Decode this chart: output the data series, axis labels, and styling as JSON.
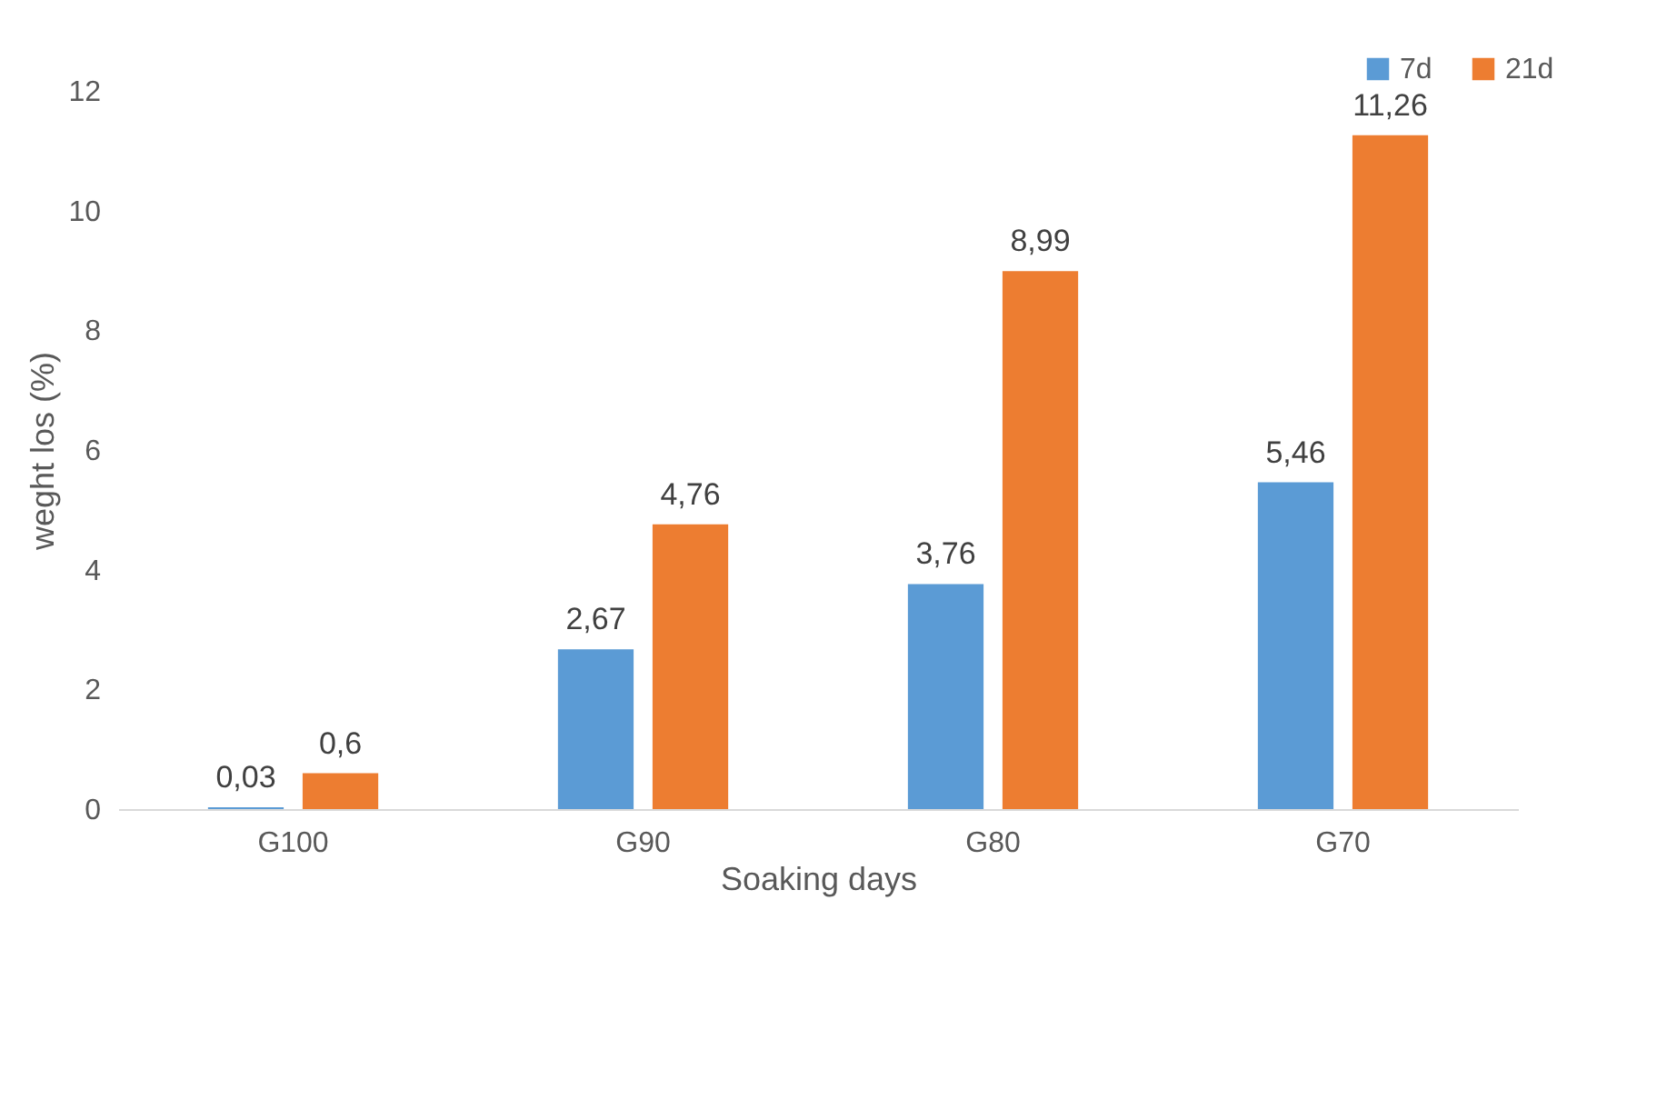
{
  "chart_data": {
    "type": "bar",
    "xlabel": "Soaking days",
    "ylabel": "weght los (%)",
    "categories": [
      "G100",
      "G90",
      "G80",
      "G70"
    ],
    "series": [
      {
        "name": "7d",
        "color": "#5b9bd5",
        "values": [
          0.03,
          2.67,
          3.76,
          5.46
        ],
        "value_labels": [
          "0,03",
          "2,67",
          "3,76",
          "5,46"
        ]
      },
      {
        "name": "21d",
        "color": "#ed7d31",
        "values": [
          0.6,
          4.76,
          8.99,
          11.26
        ],
        "value_labels": [
          "0,6",
          "4,76",
          "8,99",
          "11,26"
        ]
      }
    ],
    "ylim": [
      0,
      12
    ],
    "yticks": [
      0,
      2,
      4,
      6,
      8,
      10,
      12
    ],
    "grid": false,
    "legend": "top right"
  }
}
